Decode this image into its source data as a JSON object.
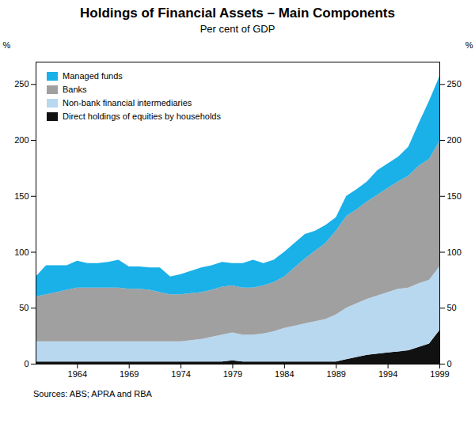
{
  "chart_data": {
    "type": "area",
    "stacked": true,
    "title": "Holdings of Financial Assets – Main Components",
    "subtitle": "Per cent of GDP",
    "source": "Sources: ABS; APRA and RBA",
    "ylabel": "%",
    "x": [
      1960,
      1961,
      1962,
      1963,
      1964,
      1965,
      1966,
      1967,
      1968,
      1969,
      1970,
      1971,
      1972,
      1973,
      1974,
      1975,
      1976,
      1977,
      1978,
      1979,
      1980,
      1981,
      1982,
      1983,
      1984,
      1985,
      1986,
      1987,
      1988,
      1989,
      1990,
      1991,
      1992,
      1993,
      1994,
      1995,
      1996,
      1997,
      1998,
      1999
    ],
    "series": [
      {
        "name": "Direct holdings of equities by households",
        "color": "#111111",
        "values": [
          2,
          2,
          2,
          2,
          2,
          2,
          2,
          2,
          2,
          2,
          2,
          2,
          2,
          2,
          2,
          2,
          2,
          2,
          2,
          3,
          2,
          2,
          2,
          2,
          2,
          2,
          2,
          2,
          2,
          2,
          4,
          6,
          8,
          9,
          10,
          11,
          12,
          15,
          18,
          30
        ]
      },
      {
        "name": "Non-bank financial intermediaries",
        "color": "#b8d8f0",
        "values": [
          18,
          18,
          18,
          18,
          18,
          18,
          18,
          18,
          18,
          18,
          18,
          18,
          18,
          18,
          18,
          19,
          20,
          22,
          24,
          25,
          24,
          24,
          25,
          27,
          30,
          32,
          34,
          36,
          38,
          42,
          46,
          48,
          50,
          52,
          54,
          56,
          56,
          57,
          57,
          57
        ]
      },
      {
        "name": "Banks",
        "color": "#a0a0a0",
        "values": [
          40,
          42,
          44,
          46,
          48,
          48,
          48,
          48,
          48,
          47,
          47,
          46,
          44,
          42,
          42,
          42,
          42,
          42,
          43,
          42,
          42,
          42,
          43,
          44,
          46,
          52,
          58,
          63,
          68,
          75,
          82,
          84,
          87,
          90,
          93,
          96,
          100,
          105,
          108,
          112
        ]
      },
      {
        "name": "Managed funds",
        "color": "#1ab0e8",
        "values": [
          18,
          26,
          24,
          22,
          24,
          22,
          22,
          23,
          25,
          20,
          20,
          20,
          22,
          16,
          18,
          20,
          22,
          22,
          22,
          20,
          22,
          25,
          20,
          20,
          22,
          22,
          22,
          18,
          16,
          12,
          18,
          18,
          18,
          22,
          22,
          22,
          26,
          38,
          52,
          58
        ]
      }
    ],
    "xlim": [
      1960,
      1999
    ],
    "xticks": [
      1964,
      1969,
      1974,
      1979,
      1984,
      1989,
      1994,
      1999
    ],
    "ylim": [
      0,
      270
    ],
    "yticks": [
      0,
      50,
      100,
      150,
      200,
      250
    ],
    "grid": false,
    "legend": "upper left"
  }
}
